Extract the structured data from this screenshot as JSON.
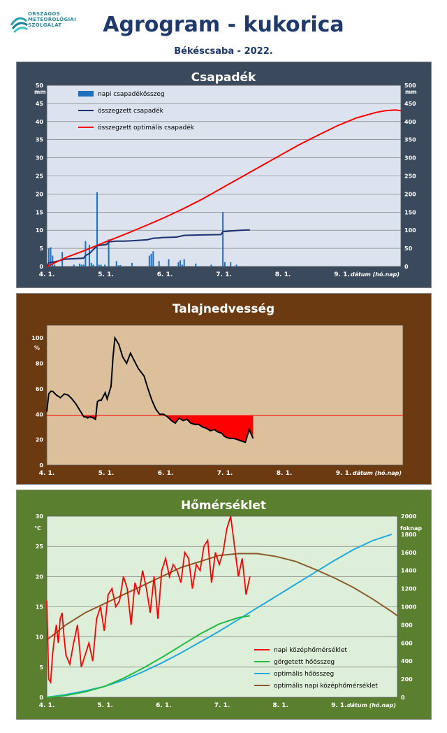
{
  "header": {
    "logo_lines": [
      "ORSZÁGOS",
      "METEOROLÓGIAI",
      "SZOLGÁLAT"
    ],
    "title": "Agrogram - kukorica",
    "subtitle": "Békéscsaba - 2022."
  },
  "colors": {
    "precip_bar": "#1f6fbf",
    "precip_cum": "#1a3070",
    "precip_opt": "#ff0000",
    "soil_line": "#000000",
    "soil_deficit": "#ff0000",
    "temp_daily": "#ff0000",
    "temp_cum": "#22bb44",
    "temp_opt_cum": "#22aadd",
    "temp_opt_daily": "#8b5a2b"
  },
  "chart_data": [
    {
      "type": "bar",
      "title": "Csapadék",
      "xlabel": "dátum (hó.nap)",
      "ylabel": "mm",
      "ylabel_right": "mm",
      "x_ticks": [
        "4. 1.",
        "5. 1.",
        "6. 1.",
        "7. 1.",
        "8. 1.",
        "9. 1."
      ],
      "xlim": [
        0,
        183
      ],
      "ylim": [
        0,
        50
      ],
      "y_ticks": [
        0,
        5,
        10,
        15,
        20,
        25,
        30,
        35,
        40,
        45,
        50
      ],
      "ylim_right": [
        0,
        500
      ],
      "y_ticks_right": [
        0,
        50,
        100,
        150,
        200,
        250,
        300,
        350,
        400,
        450,
        500
      ],
      "grid": true,
      "legend": "top-left",
      "series": [
        {
          "name": "napi csapadékösszeg",
          "type": "bar",
          "x": [
            1,
            2,
            3,
            4,
            8,
            14,
            17,
            18,
            19,
            20,
            22,
            23,
            24,
            26,
            27,
            28,
            30,
            32,
            36,
            37,
            38,
            44,
            53,
            54,
            55,
            58,
            63,
            68,
            69,
            70,
            71,
            77,
            85,
            91,
            92,
            95,
            98
          ],
          "values": [
            5,
            5.3,
            3,
            0.5,
            4,
            0.5,
            0.8,
            0.5,
            0.5,
            7,
            6,
            1,
            0.5,
            20.5,
            0.5,
            0.5,
            0.5,
            7.5,
            1.5,
            0.3,
            0.4,
            1,
            3,
            3.5,
            4.2,
            1.5,
            2,
            1.2,
            1.7,
            0.5,
            2,
            0.8,
            0.5,
            15,
            1.2,
            1.2,
            0.5
          ]
        },
        {
          "name": "összegzett csapadék",
          "type": "line",
          "axis": "right",
          "x": [
            0,
            1,
            4,
            5,
            8,
            9,
            19,
            20,
            22,
            26,
            27,
            31,
            32,
            36,
            40,
            44,
            52,
            55,
            58,
            60,
            67,
            71,
            80,
            90,
            91,
            95,
            100,
            105
          ],
          "values": [
            0,
            10,
            13,
            14,
            18,
            20,
            23,
            30,
            36,
            57,
            58,
            61,
            68,
            70,
            70,
            71,
            74,
            78,
            79,
            80,
            81,
            86,
            87,
            88,
            96,
            98,
            100,
            101
          ]
        },
        {
          "name": "összegzett optimális csapadék",
          "type": "line",
          "axis": "right",
          "x": [
            0,
            10,
            20,
            30,
            40,
            50,
            60,
            70,
            80,
            90,
            100,
            110,
            120,
            130,
            140,
            150,
            160,
            170,
            175,
            180,
            183
          ],
          "values": [
            0,
            25,
            45,
            67,
            88,
            110,
            133,
            158,
            185,
            215,
            245,
            275,
            305,
            335,
            362,
            388,
            410,
            425,
            430,
            432,
            430
          ]
        }
      ]
    },
    {
      "type": "line",
      "title": "Talajnedvesség",
      "xlabel": "dátum (hó.nap)",
      "ylabel": "%",
      "x_ticks": [
        "4. 1.",
        "5. 1.",
        "6. 1.",
        "7. 1.",
        "8. 1.",
        "9. 1."
      ],
      "xlim": [
        0,
        183
      ],
      "ylim": [
        0,
        110
      ],
      "y_ticks": [
        0,
        20,
        40,
        60,
        80,
        100
      ],
      "threshold": 39,
      "series": [
        {
          "name": "talajnedvesség",
          "x": [
            0,
            1,
            2,
            3,
            5,
            7,
            9,
            11,
            13,
            15,
            17,
            19,
            20,
            21,
            22,
            24,
            25,
            26,
            27,
            28,
            30,
            31,
            32,
            33,
            34,
            35,
            37,
            39,
            41,
            43,
            45,
            47,
            50,
            52,
            54,
            56,
            58,
            60,
            62,
            64,
            66,
            68,
            70,
            72,
            74,
            76,
            78,
            80,
            82,
            84,
            86,
            88,
            90,
            91,
            92,
            94,
            96,
            98,
            100,
            102,
            104,
            106
          ],
          "values": [
            42,
            56,
            58,
            58,
            55,
            53,
            56,
            55,
            52,
            48,
            43,
            38,
            38,
            37,
            38,
            37,
            36,
            50,
            51,
            51,
            57,
            52,
            57,
            62,
            85,
            100,
            95,
            85,
            80,
            88,
            82,
            76,
            70,
            60,
            51,
            44,
            40,
            40,
            38,
            35,
            33,
            37,
            35,
            36,
            33,
            32,
            32,
            30,
            29,
            27,
            28,
            26,
            25,
            23,
            22,
            21,
            21,
            20,
            19,
            18,
            28,
            21
          ]
        }
      ]
    },
    {
      "type": "line",
      "title": "Hőmérséklet",
      "xlabel": "dátum (hó.nap)",
      "ylabel": "°C",
      "ylabel_right": "foknap",
      "x_ticks": [
        "4. 1.",
        "5. 1.",
        "6. 1.",
        "7. 1.",
        "8. 1.",
        "9. 1."
      ],
      "xlim": [
        0,
        183
      ],
      "ylim": [
        0,
        30
      ],
      "y_ticks": [
        0,
        5,
        10,
        15,
        20,
        25,
        30
      ],
      "ylim_right": [
        0,
        2000
      ],
      "y_ticks_right": [
        0,
        200,
        400,
        600,
        800,
        1000,
        1200,
        1400,
        1600,
        1800,
        2000
      ],
      "grid": true,
      "legend": "bottom-right",
      "series": [
        {
          "name": "napi középhőmérséklet",
          "x": [
            0,
            1,
            2,
            3,
            4,
            5,
            6,
            7,
            8,
            9,
            10,
            12,
            14,
            16,
            18,
            20,
            22,
            24,
            26,
            28,
            30,
            32,
            34,
            36,
            38,
            40,
            42,
            44,
            46,
            48,
            50,
            52,
            54,
            56,
            58,
            60,
            62,
            64,
            66,
            68,
            70,
            72,
            74,
            76,
            78,
            80,
            82,
            84,
            86,
            88,
            90,
            92,
            94,
            96,
            98,
            100,
            102,
            104,
            106
          ],
          "values": [
            16,
            3,
            2.5,
            7,
            10,
            12,
            9,
            13,
            14,
            10,
            7,
            5.5,
            9,
            12,
            5,
            7,
            9,
            6,
            13,
            15,
            11,
            17,
            18,
            15,
            16,
            20,
            18,
            12,
            19,
            17,
            21,
            18,
            14,
            20,
            13,
            21,
            23,
            20,
            22,
            21,
            19,
            24,
            23,
            18,
            22,
            21,
            25,
            26,
            19,
            24,
            22,
            24,
            28,
            30,
            25,
            20,
            23,
            17,
            20
          ]
        },
        {
          "name": "görgetett hőösszeg",
          "axis": "right",
          "x": [
            0,
            10,
            20,
            30,
            40,
            50,
            60,
            70,
            80,
            90,
            100,
            106
          ],
          "values": [
            0,
            20,
            60,
            120,
            210,
            320,
            440,
            570,
            700,
            810,
            880,
            900
          ]
        },
        {
          "name": "optimális hőösszeg",
          "axis": "right",
          "x": [
            0,
            10,
            20,
            30,
            40,
            50,
            60,
            70,
            80,
            90,
            100,
            110,
            120,
            130,
            140,
            150,
            160,
            170,
            180
          ],
          "values": [
            0,
            30,
            70,
            120,
            190,
            280,
            380,
            490,
            610,
            730,
            860,
            990,
            1120,
            1250,
            1380,
            1510,
            1630,
            1730,
            1800
          ]
        },
        {
          "name": "optimális napi középhőmérséklet",
          "x": [
            0,
            10,
            20,
            30,
            40,
            50,
            60,
            70,
            80,
            90,
            100,
            110,
            120,
            130,
            140,
            150,
            160,
            170,
            180,
            183
          ],
          "values": [
            9.5,
            12,
            14,
            15.5,
            17,
            18.5,
            20,
            21.5,
            22.5,
            23.5,
            23.8,
            23.8,
            23.3,
            22.5,
            21.2,
            19.8,
            18.2,
            16.3,
            14.2,
            13.5
          ]
        }
      ]
    }
  ]
}
